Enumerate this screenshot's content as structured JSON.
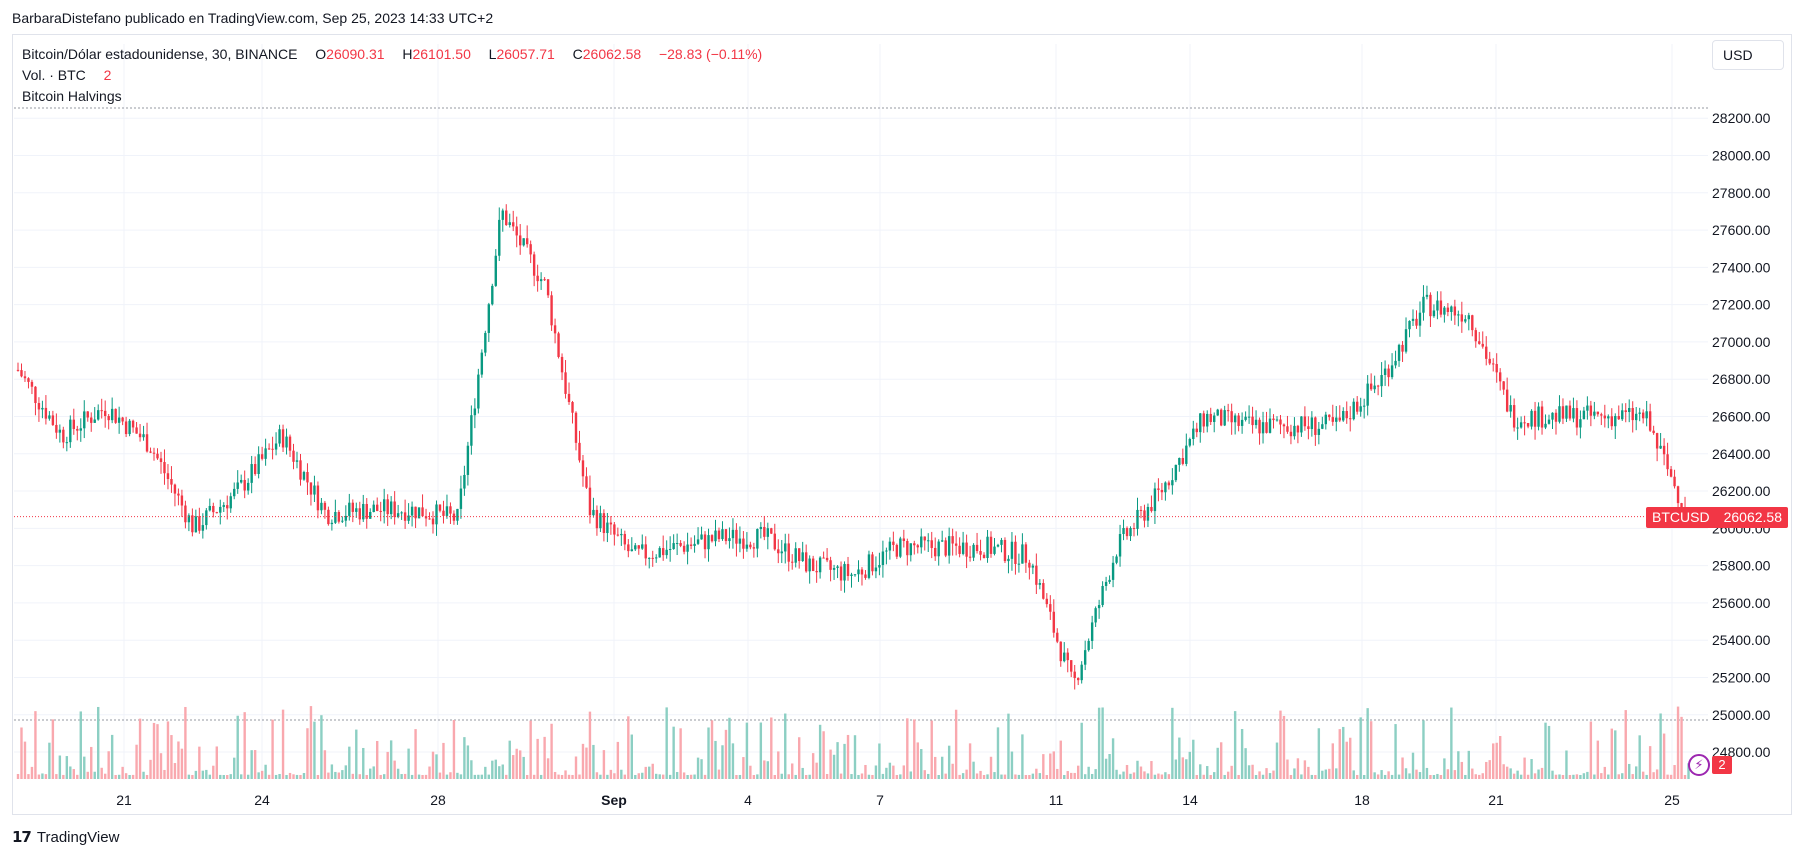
{
  "header": {
    "publisher_line": "BarbaraDistefano publicado en TradingView.com, Sep 25, 2023 14:33 UTC+2"
  },
  "legend": {
    "symbol": "Bitcoin/Dólar estadounidense, 30, BINANCE",
    "o_label": "O",
    "o_value": "26090.31",
    "h_label": "H",
    "h_value": "26101.50",
    "l_label": "L",
    "l_value": "26057.71",
    "c_label": "C",
    "c_value": "26062.58",
    "change": "−28.83 (−0.11%)",
    "volume_label": "Vol. · BTC",
    "volume_value": "2",
    "indicator": "Bitcoin Halvings"
  },
  "currency_button": "USD",
  "price_tag": {
    "symbol": "BTCUSD",
    "price": "26062.58"
  },
  "halving_marker": {
    "icon": "lightning-icon",
    "count": "2"
  },
  "footer": {
    "logo_icon": "tradingview-logo-icon",
    "brand": "TradingView"
  },
  "colors": {
    "up": "#089981",
    "down": "#f23645",
    "vol_up": "#8ccfc3",
    "vol_down": "#f9a8ae",
    "grid": "#f0f3fa"
  },
  "chart_data": {
    "type": "candlestick",
    "title": "Bitcoin/Dólar estadounidense, 30, BINANCE",
    "ylim": [
      24650,
      28330
    ],
    "y_ticks": [
      "28200.00",
      "28000.00",
      "27800.00",
      "27600.00",
      "27400.00",
      "27200.00",
      "27000.00",
      "26800.00",
      "26600.00",
      "26400.00",
      "26200.00",
      "26000.00",
      "25800.00",
      "25600.00",
      "25400.00",
      "25200.00",
      "25000.00",
      "24800.00"
    ],
    "x_ticks": [
      "21",
      "24",
      "28",
      "Sep",
      "4",
      "7",
      "11",
      "14",
      "18",
      "21",
      "25"
    ],
    "last_price": 26062.58,
    "series": [
      {
        "name": "BTCUSD",
        "points": [
          {
            "x": "Aug 18",
            "y": 26850
          },
          {
            "x": "Aug 19",
            "y": 26500
          },
          {
            "x": "Aug 20",
            "y": 26650
          },
          {
            "x": "Aug 21",
            "y": 26450
          },
          {
            "x": "Aug 22",
            "y": 26000
          },
          {
            "x": "Aug 23",
            "y": 26200
          },
          {
            "x": "Aug 24",
            "y": 26500
          },
          {
            "x": "Aug 25",
            "y": 26080
          },
          {
            "x": "Aug 26",
            "y": 26100
          },
          {
            "x": "Aug 27",
            "y": 26100
          },
          {
            "x": "Aug 28",
            "y": 26050
          },
          {
            "x": "Aug 29",
            "y": 27700
          },
          {
            "x": "Aug 30",
            "y": 27300
          },
          {
            "x": "Aug 31",
            "y": 26100
          },
          {
            "x": "Sep 1",
            "y": 25850
          },
          {
            "x": "Sep 2",
            "y": 25900
          },
          {
            "x": "Sep 3",
            "y": 25950
          },
          {
            "x": "Sep 4",
            "y": 25950
          },
          {
            "x": "Sep 5",
            "y": 25800
          },
          {
            "x": "Sep 6",
            "y": 25750
          },
          {
            "x": "Sep 7",
            "y": 25900
          },
          {
            "x": "Sep 8",
            "y": 25900
          },
          {
            "x": "Sep 9",
            "y": 25900
          },
          {
            "x": "Sep 10",
            "y": 25850
          },
          {
            "x": "Sep 11",
            "y": 25150
          },
          {
            "x": "Sep 12",
            "y": 25900
          },
          {
            "x": "Sep 13",
            "y": 26200
          },
          {
            "x": "Sep 14",
            "y": 26600
          },
          {
            "x": "Sep 15",
            "y": 26550
          },
          {
            "x": "Sep 16",
            "y": 26550
          },
          {
            "x": "Sep 17",
            "y": 26550
          },
          {
            "x": "Sep 18",
            "y": 26800
          },
          {
            "x": "Sep 19",
            "y": 27200
          },
          {
            "x": "Sep 20",
            "y": 27150
          },
          {
            "x": "Sep 21",
            "y": 26600
          },
          {
            "x": "Sep 22",
            "y": 26600
          },
          {
            "x": "Sep 23",
            "y": 26600
          },
          {
            "x": "Sep 24",
            "y": 26600
          },
          {
            "x": "Sep 25",
            "y": 26062.58
          }
        ]
      }
    ]
  }
}
